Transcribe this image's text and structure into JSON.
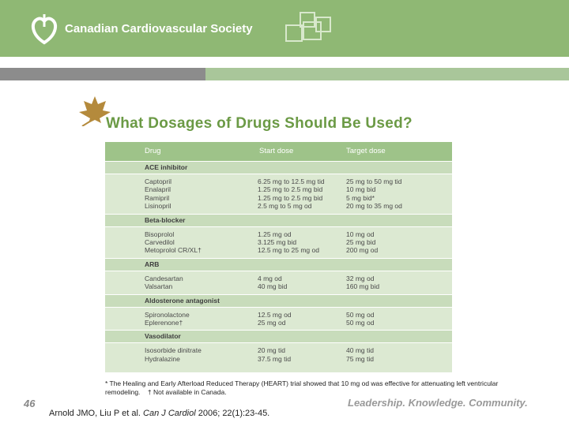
{
  "header": {
    "organization": "Canadian Cardiovascular Society"
  },
  "title": "What Dosages of Drugs Should Be Used?",
  "table": {
    "columns": [
      "Drug",
      "Start dose",
      "Target dose"
    ],
    "sections": [
      {
        "name": "ACE inhibitor",
        "rows": [
          [
            "Captopril",
            "6.25 mg to 12.5 mg tid",
            "25 mg to 50 mg tid"
          ],
          [
            "Enalapril",
            "1.25 mg to 2.5 mg bid",
            "10 mg bid"
          ],
          [
            "Ramipril",
            "1.25 mg to 2.5 mg bid",
            "5 mg bid*"
          ],
          [
            "Lisinopril",
            "2.5 mg to 5 mg od",
            "20 mg to 35 mg od"
          ]
        ]
      },
      {
        "name": "Beta-blocker",
        "rows": [
          [
            "Bisoprolol",
            "1.25 mg od",
            "10 mg od"
          ],
          [
            "Carvedilol",
            "3.125 mg bid",
            "25 mg bid"
          ],
          [
            "Metoprolol CR/XL†",
            "12.5 mg to 25 mg od",
            "200 mg od"
          ]
        ]
      },
      {
        "name": "ARB",
        "rows": [
          [
            "Candesartan",
            "4 mg od",
            "32 mg od"
          ],
          [
            "Valsartan",
            "40 mg bid",
            "160 mg bid"
          ]
        ]
      },
      {
        "name": "Aldosterone antagonist",
        "rows": [
          [
            "Spironolactone",
            "12.5 mg od",
            "50 mg od"
          ],
          [
            "Eplerenone†",
            "25 mg od",
            "50 mg od"
          ]
        ]
      },
      {
        "name": "Vasodilator",
        "rows": [
          [
            "Isosorbide dinitrate",
            "20 mg tid",
            "40 mg tid"
          ],
          [
            "Hydralazine",
            "37.5 mg tid",
            "75 mg tid"
          ]
        ]
      }
    ]
  },
  "footnote": "* The Healing and Early Afterload Reduced Therapy (HEART) trial showed that 10 mg od was effective for attenuating left ventricular remodeling.    † Not available in Canada.",
  "page_number": "46",
  "citation": {
    "authors": "Arnold JMO, Liu P et al.",
    "journal": "Can J Cardiol",
    "details": "2006; 22(1):23-45."
  },
  "tagline": "Leadership. Knowledge. Community."
}
